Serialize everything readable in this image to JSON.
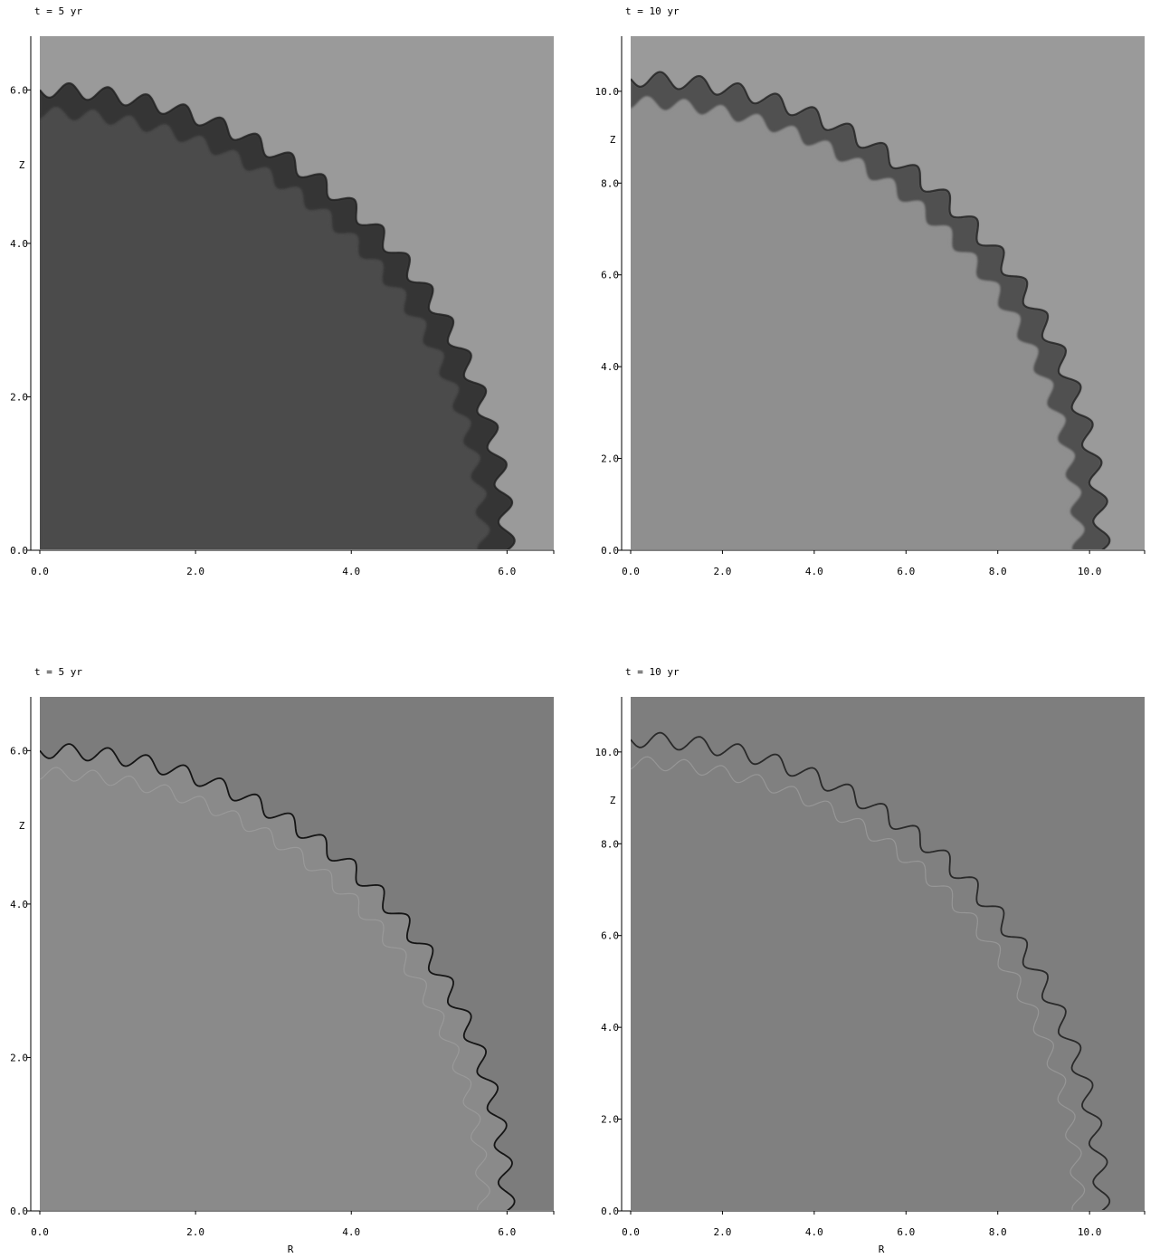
{
  "figure": {
    "panels": [
      {
        "title": "t = 5 yr",
        "xlabel": "",
        "ylabel": "Z",
        "xlim": [
          0,
          6.6
        ],
        "ylim": [
          0,
          6.7
        ],
        "xticks": [
          0,
          2,
          4,
          6
        ],
        "xtick_labels": [
          "0.0",
          "2.0",
          "4.0",
          "6.0"
        ],
        "yticks": [
          0,
          2,
          4,
          6
        ],
        "ytick_labels": [
          "0.0",
          "2.0",
          "4.0",
          "6.0"
        ],
        "shell_radius": 5.9,
        "mode": "density",
        "colors": {
          "outside": "#9a9a9a",
          "inside": "#4c4c4c",
          "shell": "#2e2e2e"
        }
      },
      {
        "title": "t = 10 yr",
        "xlabel": "",
        "ylabel": "Z",
        "xlim": [
          0,
          11.2
        ],
        "ylim": [
          0,
          11.2
        ],
        "xticks": [
          0,
          2,
          4,
          6,
          8,
          10
        ],
        "xtick_labels": [
          "0.0",
          "2.0",
          "4.0",
          "6.0",
          "8.0",
          "10.0"
        ],
        "yticks": [
          0,
          2,
          4,
          6,
          8,
          10
        ],
        "ytick_labels": [
          "0.0",
          "2.0",
          "4.0",
          "6.0",
          "8.0",
          "10.0"
        ],
        "shell_radius": 10.1,
        "mode": "density",
        "colors": {
          "outside": "#9a9a9a",
          "inside": "#8f8f8f",
          "shell": "#3a3a3a"
        }
      },
      {
        "title": "t = 5 yr",
        "xlabel": "R",
        "ylabel": "Z",
        "xlim": [
          0,
          6.6
        ],
        "ylim": [
          0,
          6.7
        ],
        "xticks": [
          0,
          2,
          4,
          6
        ],
        "xtick_labels": [
          "0.0",
          "2.0",
          "4.0",
          "6.0"
        ],
        "yticks": [
          0,
          2,
          4,
          6
        ],
        "ytick_labels": [
          "0.0",
          "2.0",
          "4.0",
          "6.0"
        ],
        "shell_radius": 5.9,
        "mode": "edge",
        "colors": {
          "outside": "#7c7c7c",
          "inside": "#8a8a8a",
          "shell": "#151515"
        }
      },
      {
        "title": "t = 10 yr",
        "xlabel": "R",
        "ylabel": "Z",
        "xlim": [
          0,
          11.2
        ],
        "ylim": [
          0,
          11.2
        ],
        "xticks": [
          0,
          2,
          4,
          6,
          8,
          10
        ],
        "xtick_labels": [
          "0.0",
          "2.0",
          "4.0",
          "6.0",
          "8.0",
          "10.0"
        ],
        "yticks": [
          0,
          2,
          4,
          6,
          8,
          10
        ],
        "ytick_labels": [
          "0.0",
          "2.0",
          "4.0",
          "6.0",
          "8.0",
          "10.0"
        ],
        "shell_radius": 10.1,
        "mode": "edge",
        "colors": {
          "outside": "#7e7e7e",
          "inside": "#808080",
          "shell": "#2a2a2a"
        }
      }
    ]
  }
}
